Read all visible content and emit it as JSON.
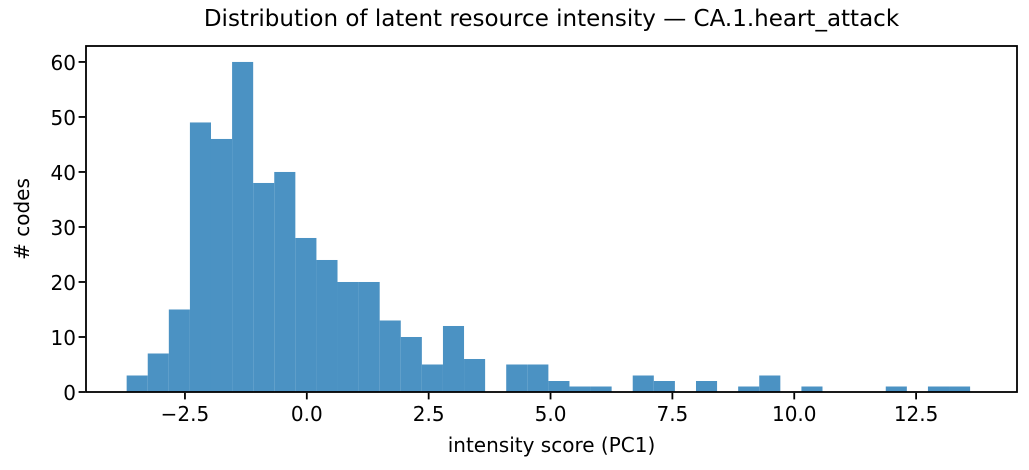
{
  "figure": {
    "title": "Distribution of latent resource intensity — CA.1.heart_attack",
    "xlabel": "intensity score (PC1)",
    "ylabel": "# codes"
  },
  "chart_data": {
    "type": "bar",
    "subtype": "histogram",
    "title": "Distribution of latent resource intensity — CA.1.heart_attack",
    "xlabel": "intensity score (PC1)",
    "ylabel": "# codes",
    "bar_color": "#4b92c3",
    "axis_color": "#000000",
    "grid": false,
    "legend": null,
    "bin_start": -3.696,
    "bin_width": 0.4326,
    "counts": [
      3,
      7,
      15,
      49,
      46,
      60,
      38,
      40,
      28,
      24,
      20,
      20,
      13,
      10,
      5,
      12,
      6,
      0,
      5,
      5,
      2,
      1,
      1,
      0,
      3,
      2,
      0,
      2,
      0,
      1,
      3,
      0,
      1,
      0,
      0,
      0,
      1,
      0,
      1,
      1
    ],
    "xlim": [
      -4.53,
      14.57
    ],
    "ylim": [
      0,
      62.9
    ],
    "xticks": [
      -2.5,
      0.0,
      2.5,
      5.0,
      7.5,
      10.0,
      12.5
    ],
    "xtick_labels": [
      "−2.5",
      "0.0",
      "2.5",
      "5.0",
      "7.5",
      "10.0",
      "12.5"
    ],
    "yticks": [
      0,
      10,
      20,
      30,
      40,
      50,
      60
    ],
    "ytick_labels": [
      "0",
      "10",
      "20",
      "30",
      "40",
      "50",
      "60"
    ]
  }
}
